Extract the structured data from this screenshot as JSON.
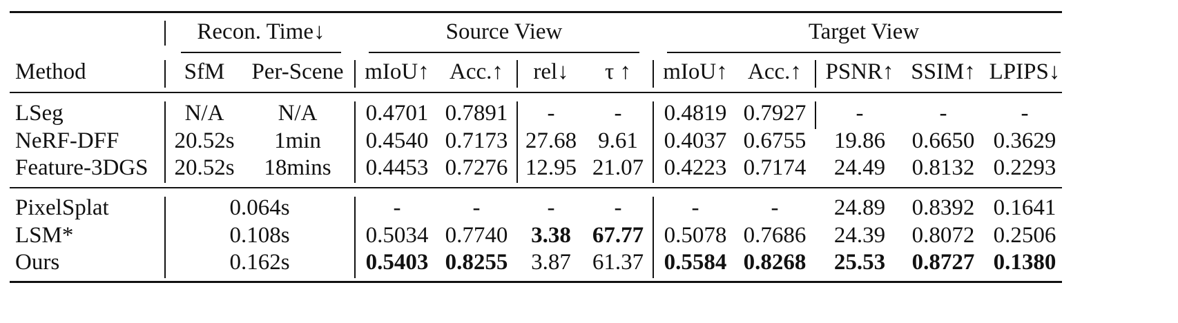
{
  "header": {
    "group_recon": "Recon. Time↓",
    "group_source": "Source View",
    "group_target": "Target View",
    "method": "Method",
    "cols": [
      "SfM",
      "Per-Scene",
      "mIoU↑",
      "Acc.↑",
      "rel↓",
      "τ ↑",
      "mIoU↑",
      "Acc.↑",
      "PSNR↑",
      "SSIM↑",
      "LPIPS↓"
    ]
  },
  "rows": [
    {
      "method": "LSeg",
      "cells": [
        "N/A",
        "N/A",
        "0.4701",
        "0.7891",
        "-",
        "-",
        "0.4819",
        "0.7927",
        "-",
        "-",
        "-"
      ],
      "bold": []
    },
    {
      "method": "NeRF-DFF",
      "cells": [
        "20.52s",
        "1min",
        "0.4540",
        "0.7173",
        "27.68",
        "9.61",
        "0.4037",
        "0.6755",
        "19.86",
        "0.6650",
        "0.3629"
      ],
      "bold": []
    },
    {
      "method": "Feature-3DGS",
      "cells": [
        "20.52s",
        "18mins",
        "0.4453",
        "0.7276",
        "12.95",
        "21.07",
        "0.4223",
        "0.7174",
        "24.49",
        "0.8132",
        "0.2293"
      ],
      "bold": []
    },
    {
      "method": "PixelSplat",
      "time": "0.064s",
      "cells": [
        "-",
        "-",
        "-",
        "-",
        "-",
        "-",
        "24.89",
        "0.8392",
        "0.1641"
      ],
      "bold": []
    },
    {
      "method": "LSM*",
      "time": "0.108s",
      "cells": [
        "0.5034",
        "0.7740",
        "3.38",
        "67.77",
        "0.5078",
        "0.7686",
        "24.39",
        "0.8072",
        "0.2506"
      ],
      "bold": [
        2,
        3
      ]
    },
    {
      "method": "Ours",
      "time": "0.162s",
      "cells": [
        "0.5403",
        "0.8255",
        "3.87",
        "61.37",
        "0.5584",
        "0.8268",
        "25.53",
        "0.8727",
        "0.1380"
      ],
      "bold": [
        0,
        1,
        4,
        5,
        6,
        7,
        8
      ]
    }
  ]
}
